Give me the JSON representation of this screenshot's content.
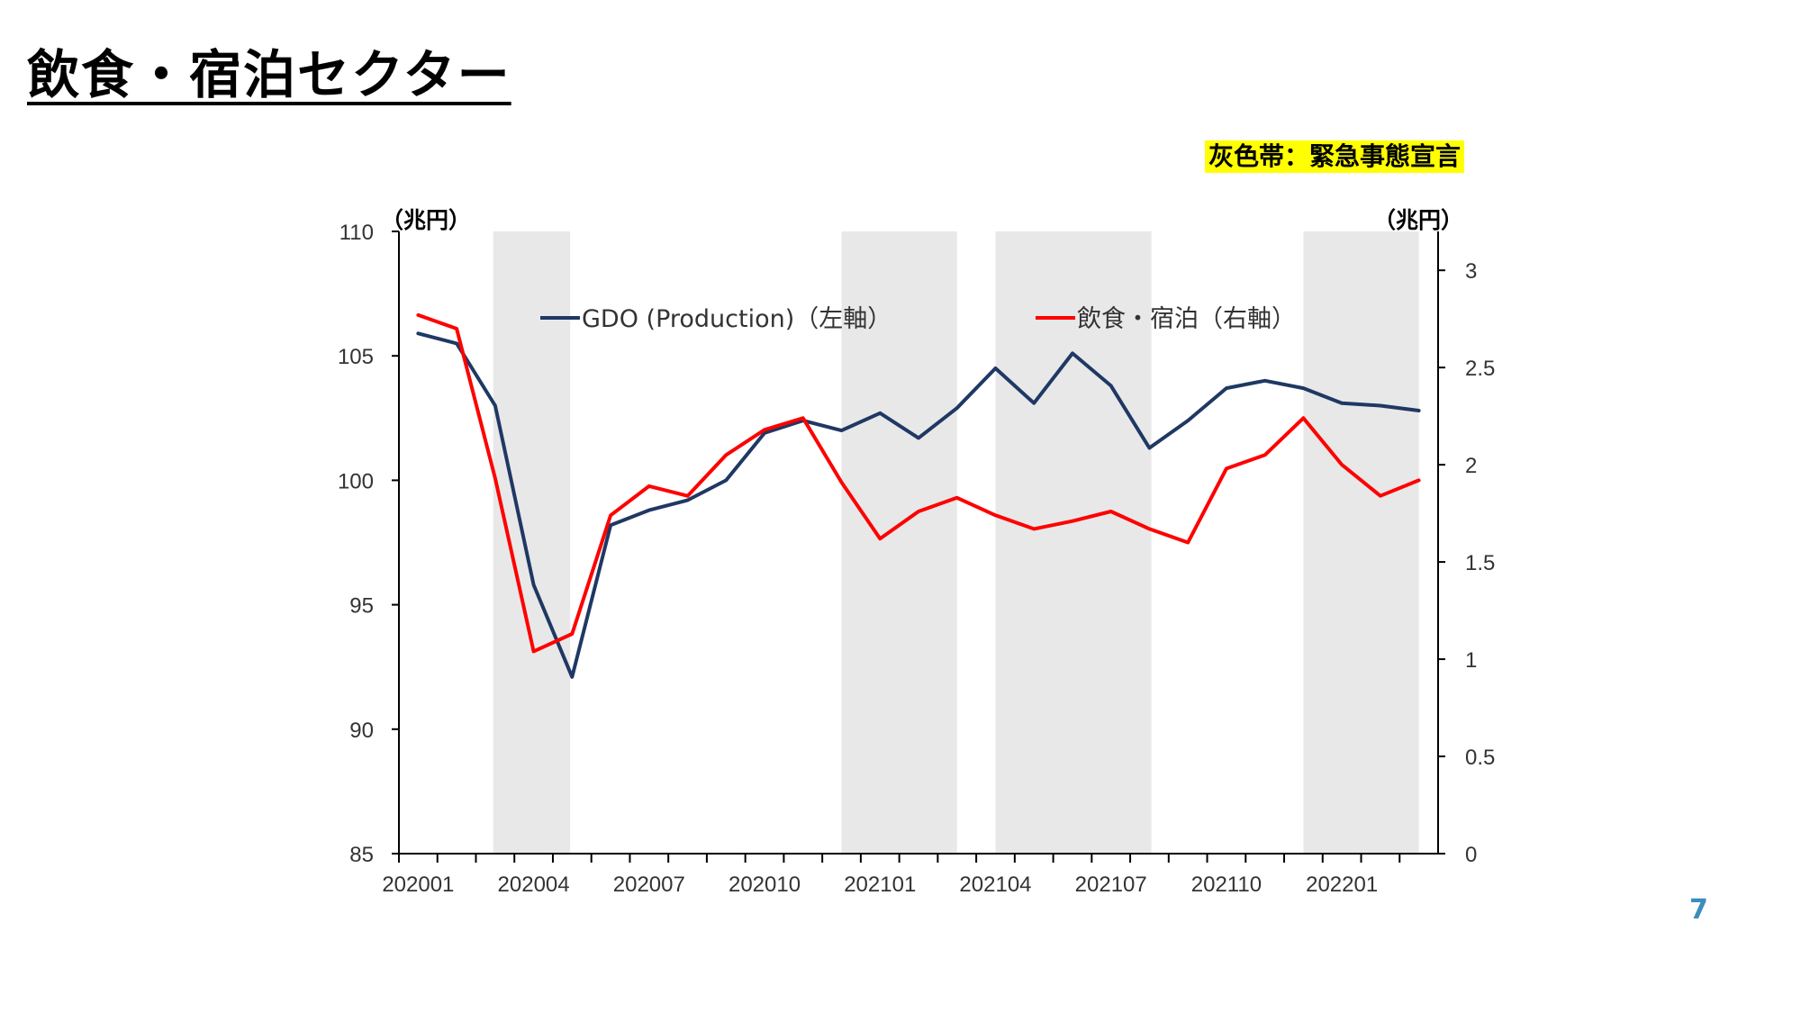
{
  "slide": {
    "title": "飲食・宿泊セクター",
    "note": "灰色帯：緊急事態宣言",
    "page_number": "7"
  },
  "chart_data": {
    "type": "line",
    "x": [
      "202001",
      "202002",
      "202003",
      "202004",
      "202005",
      "202006",
      "202007",
      "202008",
      "202009",
      "202010",
      "202011",
      "202012",
      "202101",
      "202102",
      "202103",
      "202104",
      "202105",
      "202106",
      "202107",
      "202108",
      "202109",
      "202110",
      "202111",
      "202112",
      "202201",
      "202202",
      "202203"
    ],
    "x_tick_labels": [
      "202001",
      "202004",
      "202007",
      "202010",
      "202101",
      "202104",
      "202107",
      "202110",
      "202201"
    ],
    "y_left": {
      "unit": "（兆円）",
      "range": [
        85,
        110
      ],
      "ticks": [
        "85",
        "90",
        "95",
        "100",
        "105",
        "110"
      ]
    },
    "y_right": {
      "unit": "（兆円）",
      "range": [
        0,
        3.2
      ],
      "ticks": [
        "0",
        "0.5",
        "1",
        "1.5",
        "2",
        "2.5",
        "3"
      ]
    },
    "shaded_periods": [
      {
        "start": 2.45,
        "end": 4.45
      },
      {
        "start": 11.5,
        "end": 14.5
      },
      {
        "start": 15.5,
        "end": 19.55
      },
      {
        "start": 23.5,
        "end": 26.5
      }
    ],
    "series": [
      {
        "name": "GDO (Production)（左軸）",
        "axis": "left",
        "color": "#1f3864",
        "values": [
          105.9,
          105.5,
          103.0,
          95.8,
          92.1,
          98.2,
          98.8,
          99.2,
          100.0,
          101.9,
          102.4,
          102.0,
          102.7,
          101.7,
          102.9,
          104.5,
          103.1,
          105.1,
          103.8,
          101.3,
          102.4,
          103.7,
          104.0,
          103.7,
          103.1,
          103.0,
          102.8
        ],
        "legend_label": "GDO (Production)（左軸）"
      },
      {
        "name": "飲食・宿泊（右軸）",
        "axis": "right",
        "color": "#ff0000",
        "values": [
          2.77,
          2.7,
          1.93,
          1.04,
          1.13,
          1.74,
          1.89,
          1.84,
          2.05,
          2.18,
          2.24,
          1.91,
          1.62,
          1.76,
          1.83,
          1.74,
          1.67,
          1.71,
          1.76,
          1.67,
          1.6,
          1.98,
          2.05,
          2.24,
          2.0,
          1.84,
          1.92
        ],
        "legend_label": "飲食・宿泊（右軸）"
      }
    ],
    "grid": false
  }
}
